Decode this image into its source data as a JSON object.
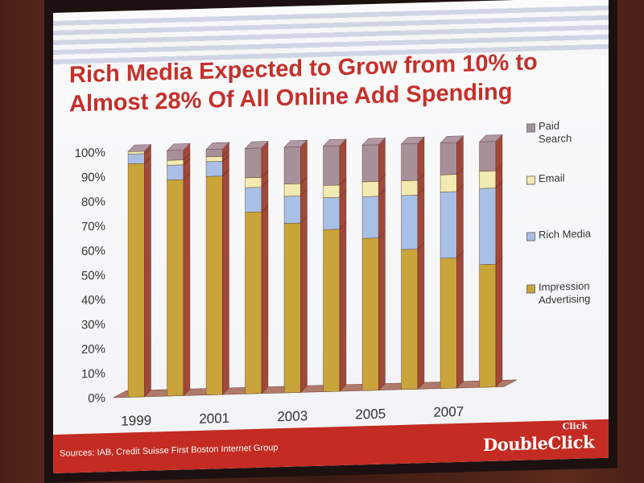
{
  "title_lines": [
    "Rich Media Expected to Grow from 10% to",
    "Almost 28% Of All Online Add Spending"
  ],
  "source": "Sources: IAB, Credit Suisse First Boston Internet Group",
  "logo_small": "Click",
  "logo": "DoubleClick",
  "colors": {
    "paid_search": "#a8909a",
    "email": "#f2eab0",
    "rich_media": "#a9c0e6",
    "impression": "#c9a43a",
    "title": "#c6302a",
    "footer": "#c42b22"
  },
  "chart_data": {
    "type": "bar",
    "stacked": true,
    "title": "Rich Media Expected to Grow from 10% to Almost 28% Of All Online Add Spending",
    "categories": [
      "1999",
      "2000",
      "2001",
      "2002",
      "2003",
      "2004",
      "2005",
      "2006",
      "2007",
      "2008"
    ],
    "x_tick_labels": [
      "1999",
      "",
      "2001",
      "",
      "2003",
      "",
      "2005",
      "",
      "2007",
      ""
    ],
    "ylim": [
      0,
      100
    ],
    "y_tick_labels": [
      "0%",
      "10%",
      "20%",
      "30%",
      "40%",
      "50%",
      "60%",
      "70%",
      "80%",
      "90%",
      "100%"
    ],
    "legend_position": "right",
    "series": [
      {
        "name": "Impression Advertising",
        "values": [
          95,
          88,
          89,
          74,
          69,
          66,
          62,
          57,
          53,
          50
        ]
      },
      {
        "name": "Rich Media",
        "values": [
          4,
          6,
          6,
          10,
          11,
          13,
          17,
          22,
          27,
          31
        ]
      },
      {
        "name": "Email",
        "values": [
          1,
          2,
          2,
          4,
          5,
          5,
          6,
          6,
          7,
          7
        ]
      },
      {
        "name": "Paid Search",
        "values": [
          0,
          4,
          3,
          12,
          15,
          16,
          15,
          15,
          13,
          12
        ]
      }
    ],
    "legend": [
      {
        "line1": "Paid",
        "line2": "Search"
      },
      {
        "line1": "Email",
        "line2": ""
      },
      {
        "line1": "Rich Media",
        "line2": ""
      },
      {
        "line1": "Impression",
        "line2": "Advertising"
      }
    ]
  }
}
